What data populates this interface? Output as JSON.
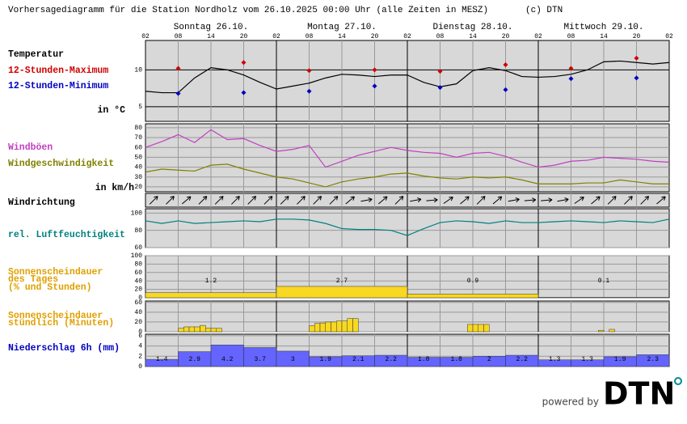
{
  "title": "Vorhersagediagramm für die Station Nordholz vom 26.10.2025 00:00 Uhr (alle Zeiten in MESZ)",
  "copyright": "(c) DTN",
  "days": [
    "Sonntag 26.10.",
    "Montag 27.10.",
    "Dienstag 28.10.",
    "Mittwoch 29.10."
  ],
  "hour_ticks": [
    "02",
    "08",
    "14",
    "20",
    "02",
    "08",
    "14",
    "20",
    "02",
    "08",
    "14",
    "20",
    "02",
    "08",
    "14",
    "20",
    "02"
  ],
  "footer": {
    "powered_by": "powered by",
    "logo": "DTN"
  },
  "chart_data": [
    {
      "type": "line",
      "title": "Temperatur",
      "unit": "in °C",
      "ylim": [
        3,
        14
      ],
      "yticks": [
        5,
        10
      ],
      "grid": true,
      "grid_color": "#000000",
      "line": {
        "color": "#000000",
        "values": [
          7.1,
          6.9,
          6.9,
          8.9,
          10.3,
          10.0,
          9.3,
          8.3,
          7.4,
          7.8,
          8.2,
          8.9,
          9.4,
          9.3,
          9.1,
          9.3,
          9.3,
          8.3,
          7.7,
          8.1,
          9.9,
          10.3,
          9.9,
          9.1,
          9.0,
          9.1,
          9.4,
          10.0,
          11.1,
          11.2,
          11.0,
          10.8,
          11.0
        ]
      },
      "series": [
        {
          "name": "12-Stunden-Maximum",
          "color": "#d00000",
          "values": [
            10.2,
            11.0,
            9.9,
            10.0,
            9.8,
            10.7,
            10.2,
            11.6
          ]
        },
        {
          "name": "12-Stunden-Minimum",
          "color": "#0000c0",
          "values": [
            6.8,
            6.9,
            7.1,
            7.8,
            7.6,
            7.3,
            8.8,
            8.9
          ]
        }
      ]
    },
    {
      "type": "line",
      "unit": "in km/h",
      "ylim": [
        15,
        84
      ],
      "yticks": [
        20,
        30,
        40,
        50,
        60,
        70,
        80
      ],
      "grid": true,
      "grid_color": "#999999",
      "series": [
        {
          "name": "Windböen",
          "color": "#c040c0",
          "values": [
            60,
            66,
            73,
            65,
            78,
            68,
            69,
            62,
            56,
            58,
            62,
            40,
            46,
            52,
            56,
            60,
            57,
            55,
            54,
            50,
            54,
            55,
            51,
            45,
            40,
            42,
            46,
            47,
            50,
            49,
            48,
            46,
            45
          ]
        },
        {
          "name": "Windgeschwindigkeit",
          "color": "#808000",
          "values": [
            35,
            38,
            37,
            36,
            42,
            43,
            38,
            34,
            30,
            28,
            24,
            20,
            25,
            28,
            30,
            33,
            34,
            31,
            29,
            28,
            30,
            29,
            30,
            27,
            23,
            23,
            23,
            24,
            24,
            27,
            25,
            23,
            23
          ]
        }
      ]
    },
    {
      "type": "arrows",
      "title": "Windrichtung",
      "values": [
        225,
        225,
        230,
        225,
        225,
        225,
        225,
        225,
        225,
        225,
        225,
        225,
        230,
        260,
        230,
        225,
        260,
        265,
        235,
        230,
        225,
        230,
        260,
        265,
        265,
        260,
        235,
        230,
        225,
        225,
        225,
        230
      ]
    },
    {
      "type": "line",
      "ylim": [
        60,
        105
      ],
      "yticks": [
        60,
        80,
        100
      ],
      "grid": true,
      "grid_color": "#999999",
      "series": [
        {
          "name": "rel. Luftfeuchtigkeit",
          "color": "#008080",
          "values": [
            91,
            88,
            91,
            88,
            89,
            90,
            91,
            90,
            93,
            93,
            92,
            88,
            82,
            81,
            81,
            80,
            74,
            82,
            89,
            91,
            90,
            88,
            91,
            89,
            89,
            90,
            91,
            90,
            89,
            91,
            90,
            89,
            93
          ]
        }
      ]
    },
    {
      "type": "bar",
      "title_lines": [
        "Sonnenscheindauer",
        "des Tages",
        "(% und Stunden)"
      ],
      "ylim": [
        0,
        100
      ],
      "yticks": [
        0,
        20,
        40,
        60,
        80,
        100
      ],
      "grid": true,
      "grid_color": "#999999",
      "color": "#f8d820",
      "values": [
        12,
        27,
        9,
        1
      ],
      "hours": [
        1.2,
        2.7,
        0.9,
        0.1
      ]
    },
    {
      "type": "bar",
      "title_lines": [
        "Sonnenscheindauer",
        "stündlich (Minuten)"
      ],
      "ylim": [
        0,
        63
      ],
      "yticks": [
        0,
        20,
        40,
        60
      ],
      "grid": true,
      "grid_color": "#999999",
      "color": "#f8d820",
      "values": [
        0,
        0,
        0,
        0,
        0,
        0,
        7,
        10,
        10,
        10,
        13,
        7,
        7,
        7,
        0,
        0,
        0,
        0,
        0,
        0,
        0,
        0,
        0,
        0,
        0,
        0,
        0,
        0,
        0,
        0,
        12,
        17,
        18,
        20,
        20,
        22,
        22,
        27,
        27,
        0,
        0,
        0,
        0,
        0,
        0,
        0,
        0,
        0,
        0,
        0,
        0,
        0,
        0,
        0,
        0,
        0,
        0,
        0,
        0,
        15,
        15,
        15,
        15,
        0,
        0,
        0,
        0,
        0,
        0,
        0,
        0,
        0,
        0,
        0,
        0,
        0,
        0,
        0,
        0,
        0,
        0,
        0,
        0,
        3,
        0,
        5,
        0,
        0,
        0,
        0,
        0,
        0,
        0,
        0,
        0,
        0
      ]
    },
    {
      "type": "bar",
      "title": "Niederschlag 6h (mm)",
      "ylim": [
        0,
        6.3
      ],
      "yticks": [
        0,
        2,
        4,
        6
      ],
      "grid": true,
      "grid_color": "#999999",
      "color": "#6464ff",
      "values": [
        1.4,
        2.9,
        4.2,
        3.7,
        3,
        1.9,
        2.1,
        2.2,
        1.8,
        1.8,
        2,
        2.2,
        1.3,
        1.3,
        1.9,
        2.3
      ]
    }
  ]
}
